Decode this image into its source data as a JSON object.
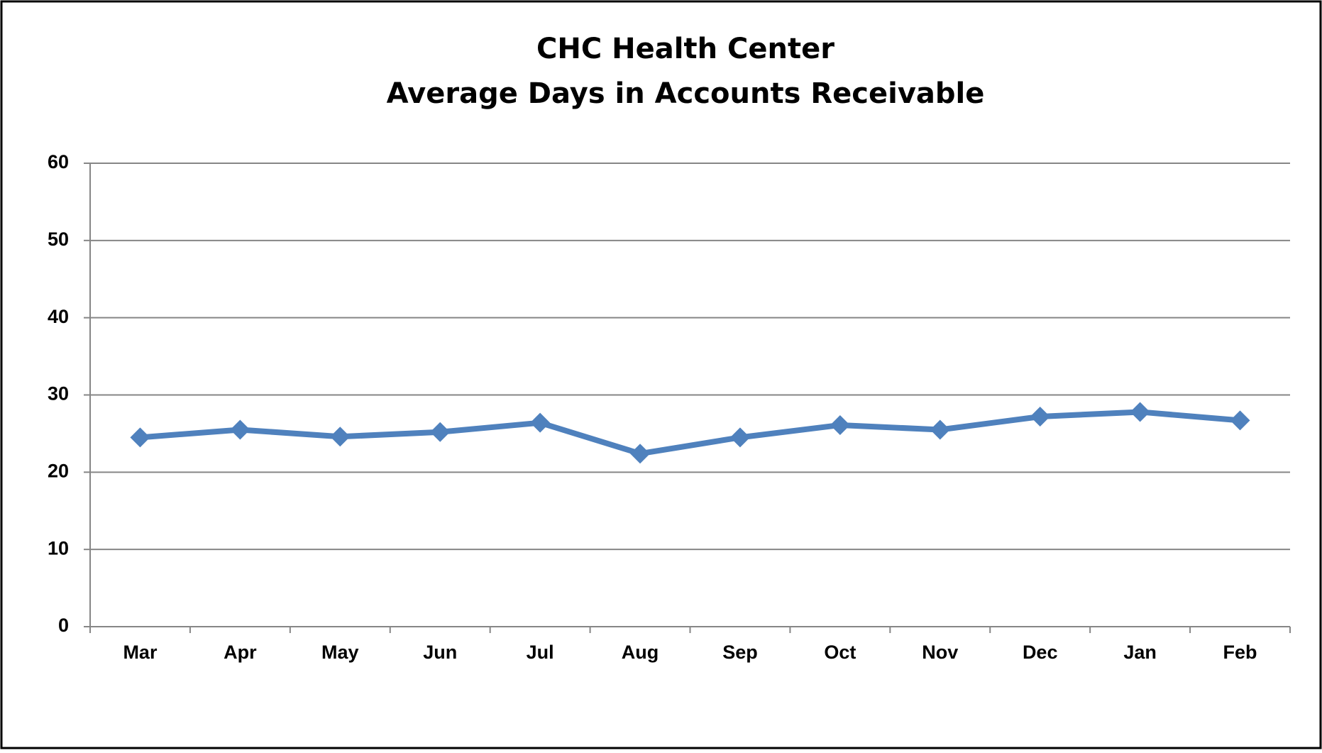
{
  "chart_data": {
    "type": "line",
    "title": "CHC Health Center",
    "subtitle": "Average Days in Accounts Receivable",
    "categories": [
      "Mar",
      "Apr",
      "May",
      "Jun",
      "Jul",
      "Aug",
      "Sep",
      "Oct",
      "Nov",
      "Dec",
      "Jan",
      "Feb"
    ],
    "series": [
      {
        "name": "Average Days in Accounts Receivable",
        "color": "#4f81bd",
        "values": [
          24.5,
          25.5,
          24.6,
          25.2,
          26.4,
          22.4,
          24.5,
          26.1,
          25.5,
          27.2,
          27.8,
          26.7
        ]
      }
    ],
    "ylim": [
      0,
      60
    ],
    "yticks": [
      0,
      10,
      20,
      30,
      40,
      50,
      60
    ],
    "grid": true,
    "legend": false
  }
}
